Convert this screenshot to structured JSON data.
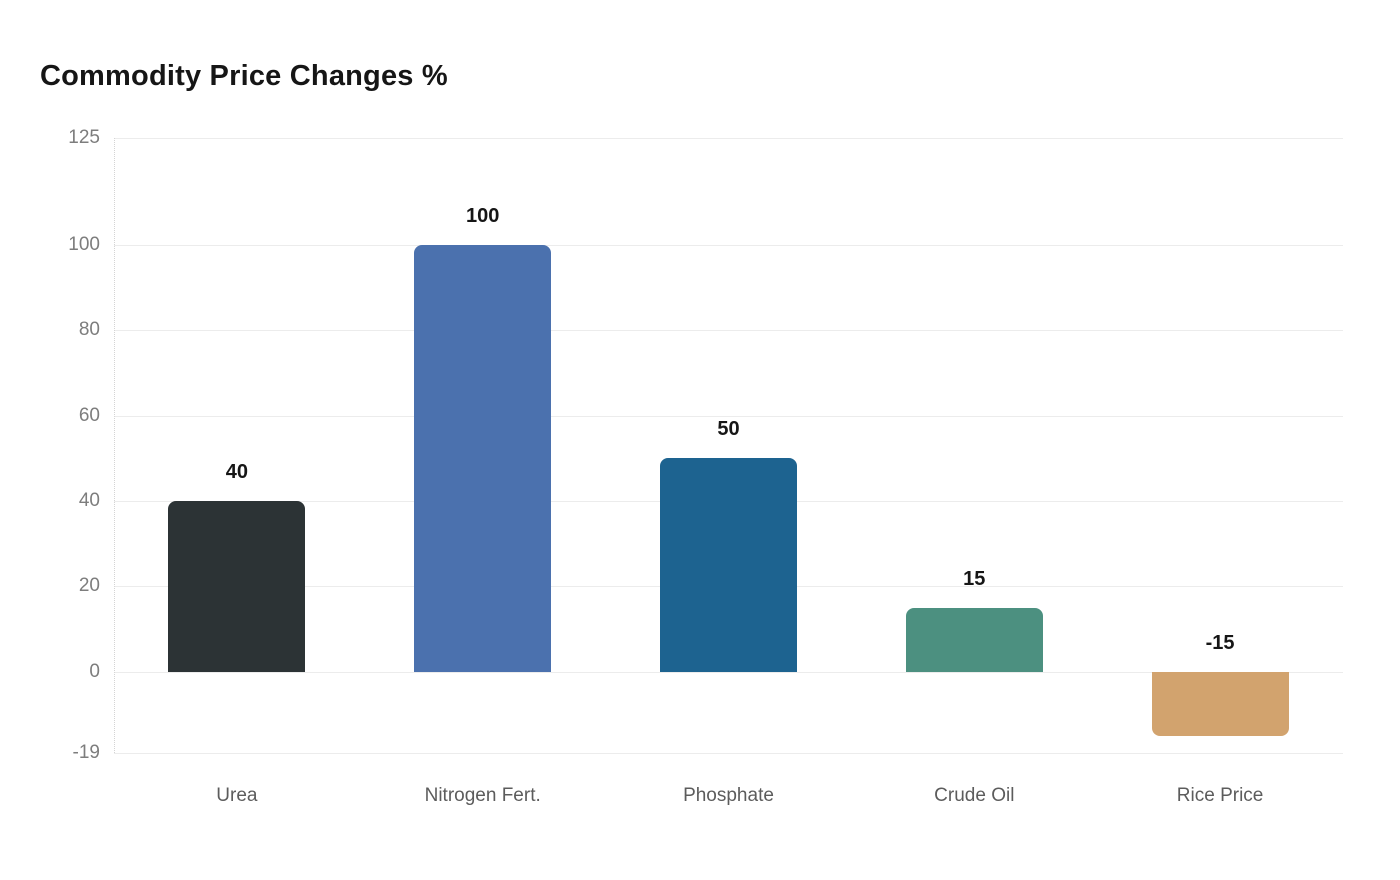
{
  "chart": {
    "title": "Commodity Price Changes %"
  },
  "chart_data": {
    "type": "bar",
    "title": "Commodity Price Changes %",
    "categories": [
      "Urea",
      "Nitrogen Fert.",
      "Phosphate",
      "Crude Oil",
      "Rice Price"
    ],
    "values": [
      40,
      100,
      50,
      15,
      -15
    ],
    "value_labels": [
      "40",
      "100",
      "50",
      "15",
      "-15"
    ],
    "bar_colors": [
      "#2c3335",
      "#4b71ae",
      "#1d6390",
      "#4c9080",
      "#d2a36e"
    ],
    "yticks": [
      125,
      100,
      80,
      60,
      40,
      20,
      0,
      -19
    ],
    "ylim": [
      -19,
      125
    ],
    "xlabel": "",
    "ylabel": "",
    "grid": true,
    "legend_position": "none",
    "background_color": "#ffffff",
    "gridline_color": "#ececec",
    "tick_label_color": "#7d7d7d",
    "category_label_color": "#5c5c5c",
    "value_label_color": "#161616",
    "title_color": "#161616"
  }
}
